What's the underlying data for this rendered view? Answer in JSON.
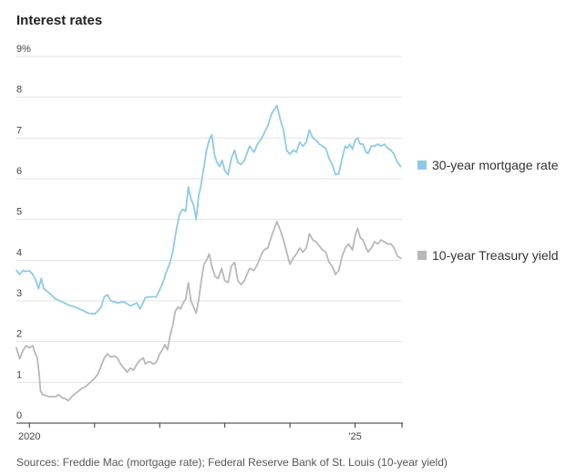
{
  "chart_data": {
    "type": "line",
    "title": "Interest rates",
    "source": "Sources: Freddie Mac (mortgage rate); Federal Reserve Bank of St. Louis (10-year yield)",
    "y_unit_suffix": "%",
    "ylim": [
      0,
      9
    ],
    "y_ticks": [
      0,
      1,
      2,
      3,
      4,
      5,
      6,
      7,
      8,
      9
    ],
    "y_tick_labels": [
      "0",
      "1",
      "2",
      "3",
      "4",
      "5",
      "6",
      "7",
      "8",
      "9%"
    ],
    "xlim": [
      2019.8,
      2025.72
    ],
    "x_ticks": [
      2020,
      2021,
      2022,
      2023,
      2024,
      2025,
      2025.72
    ],
    "x_tick_labels": [
      {
        "x": 2020,
        "label": "2020"
      },
      {
        "x": 2025,
        "label": "'25"
      }
    ],
    "grid": true,
    "legend_position": "right",
    "series": [
      {
        "name": "30-year mortgage rate",
        "color": "#8ecae6",
        "points": [
          [
            2019.8,
            3.75
          ],
          [
            2019.85,
            3.65
          ],
          [
            2019.9,
            3.75
          ],
          [
            2019.95,
            3.72
          ],
          [
            2020.0,
            3.74
          ],
          [
            2020.05,
            3.65
          ],
          [
            2020.1,
            3.5
          ],
          [
            2020.14,
            3.3
          ],
          [
            2020.18,
            3.55
          ],
          [
            2020.22,
            3.3
          ],
          [
            2020.3,
            3.2
          ],
          [
            2020.4,
            3.05
          ],
          [
            2020.5,
            2.98
          ],
          [
            2020.6,
            2.9
          ],
          [
            2020.7,
            2.85
          ],
          [
            2020.8,
            2.78
          ],
          [
            2020.9,
            2.7
          ],
          [
            2021.0,
            2.68
          ],
          [
            2021.05,
            2.75
          ],
          [
            2021.1,
            2.85
          ],
          [
            2021.15,
            3.1
          ],
          [
            2021.2,
            3.15
          ],
          [
            2021.25,
            3.0
          ],
          [
            2021.35,
            2.95
          ],
          [
            2021.45,
            2.98
          ],
          [
            2021.55,
            2.88
          ],
          [
            2021.65,
            2.95
          ],
          [
            2021.7,
            2.8
          ],
          [
            2021.78,
            3.08
          ],
          [
            2021.85,
            3.1
          ],
          [
            2021.95,
            3.1
          ],
          [
            2022.05,
            3.45
          ],
          [
            2022.1,
            3.7
          ],
          [
            2022.15,
            3.9
          ],
          [
            2022.2,
            4.2
          ],
          [
            2022.25,
            4.7
          ],
          [
            2022.3,
            5.1
          ],
          [
            2022.35,
            5.25
          ],
          [
            2022.4,
            5.2
          ],
          [
            2022.44,
            5.8
          ],
          [
            2022.48,
            5.5
          ],
          [
            2022.52,
            5.35
          ],
          [
            2022.56,
            5.0
          ],
          [
            2022.6,
            5.6
          ],
          [
            2022.63,
            5.8
          ],
          [
            2022.68,
            6.3
          ],
          [
            2022.72,
            6.7
          ],
          [
            2022.76,
            6.95
          ],
          [
            2022.8,
            7.08
          ],
          [
            2022.84,
            6.6
          ],
          [
            2022.88,
            6.4
          ],
          [
            2022.92,
            6.3
          ],
          [
            2022.96,
            6.45
          ],
          [
            2023.0,
            6.2
          ],
          [
            2023.05,
            6.1
          ],
          [
            2023.1,
            6.5
          ],
          [
            2023.15,
            6.7
          ],
          [
            2023.2,
            6.4
          ],
          [
            2023.25,
            6.35
          ],
          [
            2023.3,
            6.45
          ],
          [
            2023.38,
            6.8
          ],
          [
            2023.45,
            6.65
          ],
          [
            2023.5,
            6.85
          ],
          [
            2023.55,
            6.95
          ],
          [
            2023.6,
            7.1
          ],
          [
            2023.66,
            7.3
          ],
          [
            2023.72,
            7.6
          ],
          [
            2023.8,
            7.8
          ],
          [
            2023.86,
            7.4
          ],
          [
            2023.9,
            7.2
          ],
          [
            2023.95,
            6.7
          ],
          [
            2024.0,
            6.6
          ],
          [
            2024.05,
            6.7
          ],
          [
            2024.1,
            6.65
          ],
          [
            2024.15,
            6.9
          ],
          [
            2024.2,
            6.8
          ],
          [
            2024.25,
            6.9
          ],
          [
            2024.3,
            7.2
          ],
          [
            2024.35,
            7.0
          ],
          [
            2024.4,
            6.95
          ],
          [
            2024.45,
            6.85
          ],
          [
            2024.5,
            6.8
          ],
          [
            2024.55,
            6.75
          ],
          [
            2024.6,
            6.5
          ],
          [
            2024.65,
            6.35
          ],
          [
            2024.7,
            6.1
          ],
          [
            2024.75,
            6.12
          ],
          [
            2024.8,
            6.5
          ],
          [
            2024.85,
            6.8
          ],
          [
            2024.88,
            6.75
          ],
          [
            2024.92,
            6.85
          ],
          [
            2024.96,
            6.72
          ],
          [
            2025.0,
            6.95
          ],
          [
            2025.04,
            7.0
          ],
          [
            2025.08,
            6.85
          ],
          [
            2025.12,
            6.85
          ],
          [
            2025.17,
            6.65
          ],
          [
            2025.2,
            6.62
          ],
          [
            2025.25,
            6.8
          ],
          [
            2025.3,
            6.8
          ],
          [
            2025.35,
            6.85
          ],
          [
            2025.4,
            6.8
          ],
          [
            2025.45,
            6.85
          ],
          [
            2025.5,
            6.75
          ],
          [
            2025.55,
            6.7
          ],
          [
            2025.6,
            6.6
          ],
          [
            2025.65,
            6.4
          ],
          [
            2025.7,
            6.3
          ]
        ]
      },
      {
        "name": "10-year Treasury yield",
        "color": "#b8b8b8",
        "points": [
          [
            2019.8,
            1.85
          ],
          [
            2019.85,
            1.58
          ],
          [
            2019.9,
            1.78
          ],
          [
            2019.95,
            1.9
          ],
          [
            2020.0,
            1.85
          ],
          [
            2020.05,
            1.9
          ],
          [
            2020.08,
            1.75
          ],
          [
            2020.12,
            1.6
          ],
          [
            2020.15,
            1.2
          ],
          [
            2020.17,
            0.8
          ],
          [
            2020.2,
            0.7
          ],
          [
            2020.25,
            0.68
          ],
          [
            2020.3,
            0.65
          ],
          [
            2020.4,
            0.65
          ],
          [
            2020.45,
            0.7
          ],
          [
            2020.5,
            0.62
          ],
          [
            2020.55,
            0.6
          ],
          [
            2020.6,
            0.55
          ],
          [
            2020.65,
            0.65
          ],
          [
            2020.7,
            0.72
          ],
          [
            2020.75,
            0.78
          ],
          [
            2020.8,
            0.85
          ],
          [
            2020.85,
            0.88
          ],
          [
            2020.9,
            0.95
          ],
          [
            2021.0,
            1.1
          ],
          [
            2021.05,
            1.2
          ],
          [
            2021.1,
            1.4
          ],
          [
            2021.15,
            1.6
          ],
          [
            2021.2,
            1.7
          ],
          [
            2021.25,
            1.62
          ],
          [
            2021.3,
            1.65
          ],
          [
            2021.35,
            1.6
          ],
          [
            2021.4,
            1.45
          ],
          [
            2021.45,
            1.35
          ],
          [
            2021.5,
            1.25
          ],
          [
            2021.55,
            1.35
          ],
          [
            2021.6,
            1.3
          ],
          [
            2021.65,
            1.45
          ],
          [
            2021.7,
            1.55
          ],
          [
            2021.75,
            1.6
          ],
          [
            2021.78,
            1.45
          ],
          [
            2021.82,
            1.5
          ],
          [
            2021.86,
            1.5
          ],
          [
            2021.9,
            1.45
          ],
          [
            2021.95,
            1.5
          ],
          [
            2022.0,
            1.7
          ],
          [
            2022.04,
            1.8
          ],
          [
            2022.08,
            1.92
          ],
          [
            2022.12,
            1.8
          ],
          [
            2022.16,
            2.15
          ],
          [
            2022.2,
            2.4
          ],
          [
            2022.24,
            2.75
          ],
          [
            2022.28,
            2.85
          ],
          [
            2022.32,
            2.8
          ],
          [
            2022.36,
            2.95
          ],
          [
            2022.4,
            3.05
          ],
          [
            2022.44,
            3.45
          ],
          [
            2022.48,
            3.0
          ],
          [
            2022.52,
            2.85
          ],
          [
            2022.56,
            2.7
          ],
          [
            2022.6,
            3.05
          ],
          [
            2022.64,
            3.5
          ],
          [
            2022.68,
            3.9
          ],
          [
            2022.72,
            4.0
          ],
          [
            2022.76,
            4.15
          ],
          [
            2022.8,
            3.85
          ],
          [
            2022.85,
            3.6
          ],
          [
            2022.9,
            3.55
          ],
          [
            2022.95,
            3.8
          ],
          [
            2023.0,
            3.5
          ],
          [
            2023.05,
            3.45
          ],
          [
            2023.1,
            3.85
          ],
          [
            2023.15,
            3.95
          ],
          [
            2023.2,
            3.5
          ],
          [
            2023.25,
            3.4
          ],
          [
            2023.3,
            3.5
          ],
          [
            2023.38,
            3.8
          ],
          [
            2023.45,
            3.75
          ],
          [
            2023.5,
            3.9
          ],
          [
            2023.55,
            4.1
          ],
          [
            2023.6,
            4.25
          ],
          [
            2023.66,
            4.3
          ],
          [
            2023.72,
            4.6
          ],
          [
            2023.8,
            4.95
          ],
          [
            2023.86,
            4.7
          ],
          [
            2023.9,
            4.5
          ],
          [
            2023.95,
            4.2
          ],
          [
            2024.0,
            3.9
          ],
          [
            2024.05,
            4.05
          ],
          [
            2024.1,
            4.15
          ],
          [
            2024.15,
            4.3
          ],
          [
            2024.2,
            4.2
          ],
          [
            2024.25,
            4.3
          ],
          [
            2024.3,
            4.65
          ],
          [
            2024.35,
            4.5
          ],
          [
            2024.4,
            4.45
          ],
          [
            2024.45,
            4.35
          ],
          [
            2024.5,
            4.25
          ],
          [
            2024.55,
            4.2
          ],
          [
            2024.6,
            3.95
          ],
          [
            2024.65,
            3.85
          ],
          [
            2024.7,
            3.65
          ],
          [
            2024.75,
            3.75
          ],
          [
            2024.8,
            4.1
          ],
          [
            2024.85,
            4.3
          ],
          [
            2024.9,
            4.4
          ],
          [
            2024.96,
            4.25
          ],
          [
            2025.0,
            4.6
          ],
          [
            2025.04,
            4.78
          ],
          [
            2025.08,
            4.55
          ],
          [
            2025.12,
            4.5
          ],
          [
            2025.17,
            4.3
          ],
          [
            2025.2,
            4.2
          ],
          [
            2025.25,
            4.3
          ],
          [
            2025.3,
            4.45
          ],
          [
            2025.35,
            4.4
          ],
          [
            2025.4,
            4.5
          ],
          [
            2025.45,
            4.45
          ],
          [
            2025.5,
            4.4
          ],
          [
            2025.55,
            4.4
          ],
          [
            2025.6,
            4.3
          ],
          [
            2025.65,
            4.1
          ],
          [
            2025.7,
            4.05
          ]
        ]
      }
    ]
  }
}
